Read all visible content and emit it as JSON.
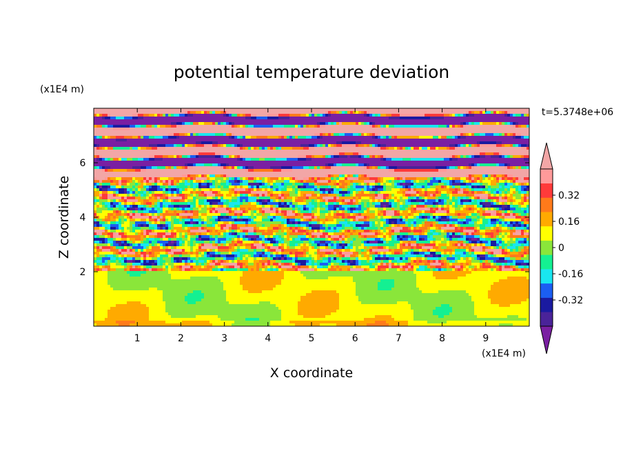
{
  "chart_data": {
    "type": "heatmap",
    "title": "potential temperature deviation",
    "xlabel": "X coordinate",
    "ylabel": "Z coordinate",
    "x_unit": "(x1E4 m)",
    "y_unit": "(x1E4 m)",
    "time_label": "t=5.3748e+06",
    "xlim": [
      0,
      10
    ],
    "ylim": [
      0,
      8
    ],
    "x_ticks": [
      "1",
      "2",
      "3",
      "4",
      "5",
      "6",
      "7",
      "8",
      "9"
    ],
    "y_ticks": [
      "2",
      "4",
      "6"
    ],
    "colorbar": {
      "levels": [
        -0.48,
        -0.4,
        -0.32,
        -0.24,
        -0.16,
        -0.08,
        0,
        0.08,
        0.16,
        0.24,
        0.32,
        0.4,
        0.48
      ],
      "colors": [
        "#7a1fa2",
        "#4a2399",
        "#1a1aa0",
        "#1b5ef2",
        "#19e6f0",
        "#14f092",
        "#8ae63a",
        "#ffff00",
        "#ffaa00",
        "#ff7a1a",
        "#ff3a3a",
        "#ff9a9a",
        "#f2a6a6"
      ],
      "tick_labels": [
        "0.32",
        "0.16",
        "0",
        "-0.16",
        "-0.32"
      ],
      "tick_values": [
        0.32,
        0.16,
        0,
        -0.16,
        -0.32
      ]
    },
    "regions": [
      {
        "z_range": [
          0,
          2
        ],
        "description": "near-zero, mostly green and light green"
      },
      {
        "z_range": [
          2,
          5.5
        ],
        "description": "mixed layered anomalies from -0.48 to 0.48"
      },
      {
        "z_range": [
          5.5,
          8
        ],
        "description": "alternating bands of strongly positive (pink) and strongly negative (purple)"
      }
    ]
  }
}
